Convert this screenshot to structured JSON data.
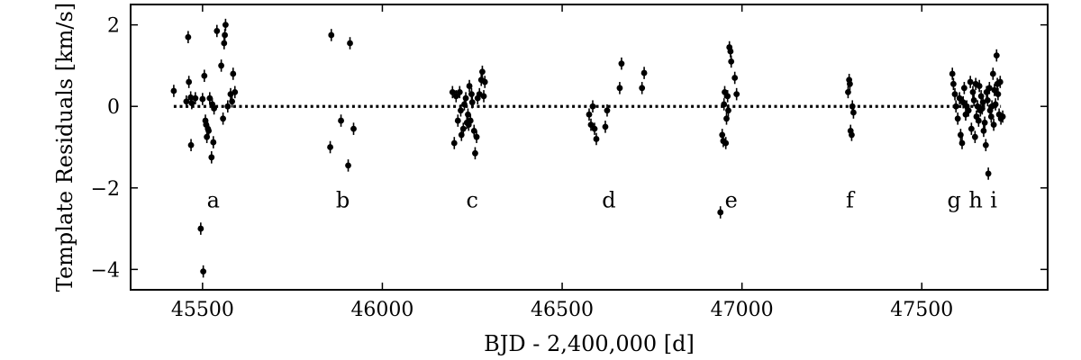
{
  "chart_data": {
    "type": "scatter",
    "xlabel": "BJD - 2,400,000 [d]",
    "ylabel": "Template Residuals [km/s]",
    "xlim": [
      45300,
      47850
    ],
    "ylim": [
      -4.5,
      2.5
    ],
    "xticks": [
      45500,
      46000,
      46500,
      47000,
      47500
    ],
    "xtick_labels": [
      "45500",
      "46000",
      "46500",
      "47000",
      "47500"
    ],
    "yticks": [
      2,
      0,
      -2,
      -4
    ],
    "ytick_labels": [
      "2",
      "0",
      "−2",
      "−4"
    ],
    "error_bar": 0.15,
    "reference_line": {
      "y": 0,
      "x_range": [
        45420,
        47720
      ],
      "style": "dotted"
    },
    "group_labels": [
      {
        "text": "a",
        "x": 45530,
        "y": -2.3
      },
      {
        "text": "b",
        "x": 45890,
        "y": -2.3
      },
      {
        "text": "c",
        "x": 46250,
        "y": -2.3
      },
      {
        "text": "d",
        "x": 46630,
        "y": -2.3
      },
      {
        "text": "e",
        "x": 46970,
        "y": -2.3
      },
      {
        "text": "f",
        "x": 47300,
        "y": -2.3
      },
      {
        "text": "g",
        "x": 47590,
        "y": -2.3
      },
      {
        "text": "h",
        "x": 47650,
        "y": -2.3
      },
      {
        "text": "i",
        "x": 47700,
        "y": -2.3
      }
    ],
    "points": [
      [
        45420,
        0.38
      ],
      [
        45455,
        0.12
      ],
      [
        45460,
        1.7
      ],
      [
        45462,
        0.6
      ],
      [
        45467,
        0.22
      ],
      [
        45468,
        -0.95
      ],
      [
        45470,
        0.08
      ],
      [
        45480,
        0.2
      ],
      [
        45495,
        -3.0
      ],
      [
        45500,
        0.18
      ],
      [
        45502,
        -4.05
      ],
      [
        45505,
        0.75
      ],
      [
        45508,
        -0.35
      ],
      [
        45510,
        -0.45
      ],
      [
        45512,
        -0.75
      ],
      [
        45515,
        -0.55
      ],
      [
        45517,
        -0.6
      ],
      [
        45520,
        0.2
      ],
      [
        45525,
        -1.25
      ],
      [
        45527,
        0.05
      ],
      [
        45530,
        -0.88
      ],
      [
        45532,
        -0.05
      ],
      [
        45540,
        1.85
      ],
      [
        45552,
        1.0
      ],
      [
        45557,
        -0.3
      ],
      [
        45560,
        1.55
      ],
      [
        45562,
        1.75
      ],
      [
        45564,
        2.0
      ],
      [
        45570,
        0.0
      ],
      [
        45578,
        0.3
      ],
      [
        45582,
        0.12
      ],
      [
        45585,
        0.8
      ],
      [
        45590,
        0.35
      ],
      [
        45855,
        -1.0
      ],
      [
        45858,
        1.75
      ],
      [
        45885,
        -0.35
      ],
      [
        45905,
        -1.45
      ],
      [
        45910,
        1.55
      ],
      [
        45920,
        -0.55
      ],
      [
        46195,
        0.35
      ],
      [
        46200,
        -0.9
      ],
      [
        46205,
        0.25
      ],
      [
        46210,
        -0.35
      ],
      [
        46215,
        0.35
      ],
      [
        46218,
        -0.1
      ],
      [
        46220,
        -0.7
      ],
      [
        46225,
        -0.55
      ],
      [
        46228,
        0.05
      ],
      [
        46232,
        0.2
      ],
      [
        46235,
        -0.4
      ],
      [
        46238,
        -0.2
      ],
      [
        46240,
        -0.45
      ],
      [
        46242,
        0.5
      ],
      [
        46245,
        -0.35
      ],
      [
        46248,
        0.3
      ],
      [
        46250,
        0.1
      ],
      [
        46255,
        -0.6
      ],
      [
        46258,
        -1.15
      ],
      [
        46262,
        -0.75
      ],
      [
        46265,
        0.2
      ],
      [
        46270,
        0.3
      ],
      [
        46275,
        0.65
      ],
      [
        46278,
        0.85
      ],
      [
        46282,
        0.25
      ],
      [
        46285,
        0.6
      ],
      [
        46575,
        -0.2
      ],
      [
        46580,
        -0.45
      ],
      [
        46585,
        0.0
      ],
      [
        46590,
        -0.55
      ],
      [
        46595,
        -0.8
      ],
      [
        46620,
        -0.5
      ],
      [
        46625,
        -0.1
      ],
      [
        46660,
        0.45
      ],
      [
        46665,
        1.05
      ],
      [
        46722,
        0.45
      ],
      [
        46728,
        0.82
      ],
      [
        46940,
        -2.6
      ],
      [
        46945,
        -0.7
      ],
      [
        46948,
        -0.85
      ],
      [
        46950,
        0.05
      ],
      [
        46952,
        0.35
      ],
      [
        46955,
        -0.9
      ],
      [
        46957,
        -0.3
      ],
      [
        46960,
        0.25
      ],
      [
        46962,
        -0.1
      ],
      [
        46965,
        1.45
      ],
      [
        46968,
        1.35
      ],
      [
        46970,
        1.1
      ],
      [
        46980,
        0.7
      ],
      [
        46985,
        0.3
      ],
      [
        47295,
        0.35
      ],
      [
        47298,
        0.65
      ],
      [
        47300,
        0.55
      ],
      [
        47302,
        -0.6
      ],
      [
        47305,
        -0.7
      ],
      [
        47307,
        0.0
      ],
      [
        47310,
        -0.15
      ],
      [
        47585,
        0.8
      ],
      [
        47588,
        0.55
      ],
      [
        47592,
        0.3
      ],
      [
        47595,
        0.0
      ],
      [
        47600,
        -0.3
      ],
      [
        47605,
        0.2
      ],
      [
        47608,
        -0.7
      ],
      [
        47612,
        -0.9
      ],
      [
        47615,
        0.1
      ],
      [
        47618,
        0.45
      ],
      [
        47622,
        -0.2
      ],
      [
        47625,
        0.0
      ],
      [
        47630,
        -0.1
      ],
      [
        47635,
        0.6
      ],
      [
        47638,
        -0.55
      ],
      [
        47642,
        0.35
      ],
      [
        47645,
        0.15
      ],
      [
        47648,
        -0.75
      ],
      [
        47650,
        0.55
      ],
      [
        47652,
        -0.25
      ],
      [
        47655,
        0.0
      ],
      [
        47658,
        -0.35
      ],
      [
        47660,
        0.5
      ],
      [
        47663,
        -0.1
      ],
      [
        47665,
        0.25
      ],
      [
        47668,
        -0.05
      ],
      [
        47670,
        0.1
      ],
      [
        47672,
        -0.6
      ],
      [
        47675,
        -0.4
      ],
      [
        47678,
        -0.95
      ],
      [
        47680,
        0.35
      ],
      [
        47683,
        0.15
      ],
      [
        47685,
        -1.65
      ],
      [
        47688,
        0.45
      ],
      [
        47690,
        -0.1
      ],
      [
        47693,
        -0.25
      ],
      [
        47695,
        0.0
      ],
      [
        47698,
        0.8
      ],
      [
        47700,
        -0.45
      ],
      [
        47702,
        0.4
      ],
      [
        47705,
        0.05
      ],
      [
        47708,
        1.25
      ],
      [
        47710,
        0.55
      ],
      [
        47712,
        0.3
      ],
      [
        47715,
        -0.2
      ],
      [
        47718,
        0.6
      ],
      [
        47720,
        -0.3
      ],
      [
        47725,
        -0.25
      ]
    ]
  }
}
